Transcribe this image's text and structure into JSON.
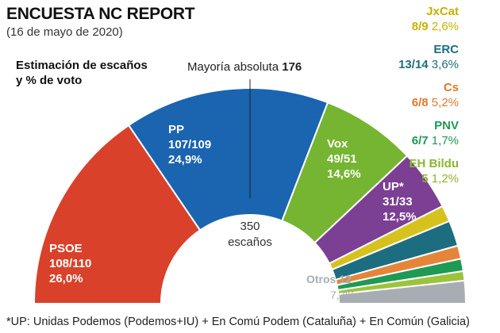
{
  "header": {
    "title": "ENCUESTA NC REPORT",
    "subtitle": "(16 de mayo de 2020)",
    "estimate_line1": "Estimación de escaños",
    "estimate_line2": "y % de voto"
  },
  "majority": {
    "label": "Mayoría absoluta",
    "value": "176"
  },
  "center": {
    "seats": "350",
    "label": "escaños"
  },
  "chart_data": {
    "type": "pie",
    "subtype": "hemicycle",
    "title": "ENCUESTA NC REPORT",
    "subtitle": "(16 de mayo de 2020)",
    "total_seats": 350,
    "majority": 176,
    "series": [
      {
        "name": "PSOE",
        "seats": "108/110",
        "vote_pct": 26.0,
        "seats_mid": 109,
        "color": "#d9412b",
        "seats_label": "108/110",
        "pct_label": "26,0%"
      },
      {
        "name": "PP",
        "seats": "107/109",
        "vote_pct": 24.9,
        "seats_mid": 108,
        "color": "#1a64b0",
        "seats_label": "107/109",
        "pct_label": "24,9%"
      },
      {
        "name": "Vox",
        "seats": "49/51",
        "vote_pct": 14.6,
        "seats_mid": 50,
        "color": "#75b531",
        "seats_label": "49/51",
        "pct_label": "14,6%"
      },
      {
        "name": "UP*",
        "seats": "31/33",
        "vote_pct": 12.5,
        "seats_mid": 32,
        "color": "#7b3f93",
        "seats_label": "31/33",
        "pct_label": "12,5%"
      },
      {
        "name": "JxCat",
        "seats": "8/9",
        "vote_pct": 2.6,
        "seats_mid": 8.5,
        "color": "#d6c21c",
        "seats_label": "8/9",
        "pct_label": "2,6%"
      },
      {
        "name": "ERC",
        "seats": "13/14",
        "vote_pct": 3.6,
        "seats_mid": 13.5,
        "color": "#1d6d80",
        "seats_label": "13/14",
        "pct_label": "3,6%"
      },
      {
        "name": "Cs",
        "seats": "6/8",
        "vote_pct": 5.2,
        "seats_mid": 7,
        "color": "#e5853a",
        "seats_label": "6/8",
        "pct_label": "5,2%"
      },
      {
        "name": "PNV",
        "seats": "6/7",
        "vote_pct": 1.7,
        "seats_mid": 6.5,
        "color": "#1e9a55",
        "seats_label": "6/7",
        "pct_label": "1,7%"
      },
      {
        "name": "EH Bildu",
        "seats": "5",
        "vote_pct": 1.2,
        "seats_mid": 5,
        "color": "#9cc33b",
        "seats_label": "5",
        "pct_label": "1,2%"
      },
      {
        "name": "Otros",
        "seats": "12",
        "vote_pct": 7.7,
        "seats_mid": 12,
        "color": "#a8adb3",
        "seats_label": "12",
        "pct_label": "7,7%"
      }
    ]
  },
  "legend": [
    {
      "name": "JxCat",
      "seats": "8/9",
      "pct": "2,6%",
      "color": "#c9b200"
    },
    {
      "name": "ERC",
      "seats": "13/14",
      "pct": "3,6%",
      "color": "#1d6d80"
    },
    {
      "name": "Cs",
      "seats": "6/8",
      "pct": "5,2%",
      "color": "#e07a2b"
    },
    {
      "name": "PNV",
      "seats": "6/7",
      "pct": "1,7%",
      "color": "#1e9a55"
    },
    {
      "name": "EH Bildu",
      "seats": "5",
      "pct": "1,2%",
      "color": "#8cb52e"
    }
  ],
  "otros": {
    "label": "Otros 12",
    "pct": "7,7%"
  },
  "footnote": "*UP: Unidas Podemos (Podemos+IU) + En Comú Podem (Cataluña) + En Común (Galicia)"
}
